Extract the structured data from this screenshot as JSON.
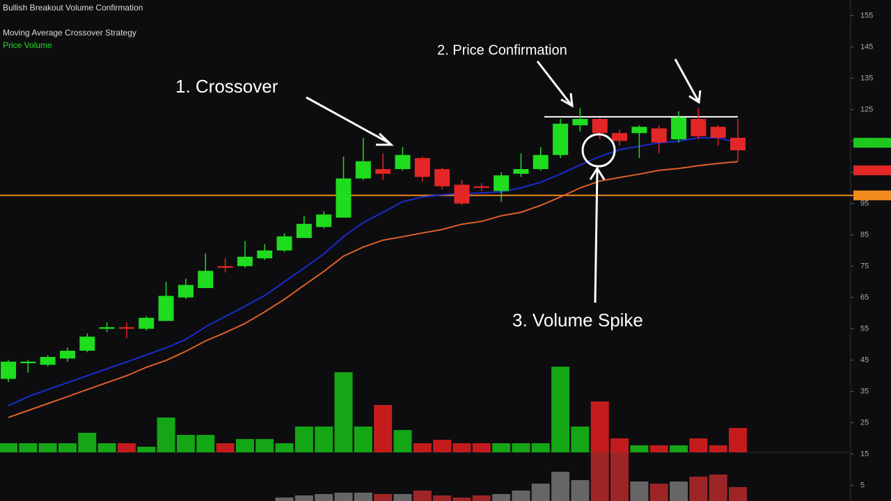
{
  "chart_data": {
    "type": "candlestick",
    "header": [
      "Bullish Breakout Volume Confirmation",
      "Moving Average Crossover Strategy",
      "Price Volume"
    ],
    "annotations": [
      "1. Crossover",
      "2. Price  Confirmation",
      "3. Volume Spike"
    ],
    "ylim": [
      0,
      160
    ],
    "yticks": [
      155,
      145,
      135,
      125,
      115,
      105,
      95,
      85,
      75,
      65,
      55,
      45,
      35,
      25,
      15,
      5
    ],
    "up_color": "#1fdc1f",
    "down_color": "#e32626",
    "open": [
      39,
      44,
      43.5,
      45.5,
      48,
      55,
      55.5,
      55,
      57.5,
      65,
      68,
      75,
      75,
      77.5,
      80,
      84,
      87.5,
      90.5,
      103,
      106,
      106,
      109.5,
      106,
      101,
      100.5,
      99,
      104.5,
      106,
      110.5,
      120,
      122,
      117.5,
      117.5,
      119,
      115.5,
      122,
      119.5,
      116
    ],
    "close": [
      44.5,
      44.5,
      46,
      48,
      52.5,
      55.5,
      55,
      58.5,
      65.5,
      69,
      73.5,
      74.5,
      78,
      80,
      84.5,
      88.5,
      91.5,
      103,
      108.5,
      104.5,
      110.5,
      103.5,
      100.5,
      95,
      100,
      104,
      106,
      110.5,
      120.5,
      122,
      117.5,
      115,
      119.5,
      114.5,
      122.5,
      116.5,
      116,
      112
    ],
    "high": [
      45,
      45,
      46.5,
      49,
      53.5,
      57,
      57,
      59,
      70,
      71,
      79,
      77.5,
      83,
      82,
      85.5,
      91,
      92.5,
      110,
      116,
      111,
      113,
      110,
      106.5,
      102.5,
      101.5,
      105,
      111,
      113,
      122,
      125.5,
      122.5,
      118.5,
      120,
      120,
      124.5,
      125.5,
      120,
      122
    ],
    "low": [
      38,
      41,
      43,
      44.5,
      47.5,
      54,
      52,
      54.5,
      57.5,
      64.5,
      68,
      73,
      74.5,
      77,
      79.5,
      84,
      87,
      90.5,
      102.5,
      102.5,
      105.5,
      102,
      99.5,
      94.5,
      99,
      95.5,
      103.5,
      105.5,
      109.5,
      118,
      115.5,
      113.5,
      109.5,
      111,
      114.5,
      115.5,
      113.5,
      108.5
    ],
    "series": [
      {
        "color": "#1b2bd0",
        "values": [
          30.4,
          33.3,
          35.6,
          37.8,
          40,
          42.2,
          44.4,
          46.7,
          48.9,
          51.6,
          55.6,
          58.9,
          62.2,
          65.6,
          70,
          74.4,
          78.9,
          84.4,
          88.9,
          92.2,
          95.6,
          97.1,
          97.8,
          98.2,
          98.4,
          98.7,
          100,
          101.8,
          104.4,
          107.3,
          110,
          112.2,
          113.3,
          114.4,
          114.9,
          116,
          116,
          114.4
        ]
      },
      {
        "color": "#e0602a",
        "values": [
          26.7,
          28.9,
          31.1,
          33.3,
          35.6,
          37.8,
          40,
          42.7,
          44.9,
          47.8,
          51.1,
          53.8,
          56.7,
          60.4,
          64.4,
          68.9,
          73.3,
          78.2,
          81.1,
          83.3,
          84.4,
          85.6,
          86.7,
          88.4,
          89.3,
          91.1,
          92.2,
          94.4,
          97.1,
          100,
          102.2,
          103.3,
          104.4,
          105.6,
          106.2,
          107.1,
          107.8,
          108.4
        ]
      }
    ],
    "support": 97.6,
    "support_color": "#f08a1c",
    "resistance": 122.7,
    "price_tags": [
      {
        "value": 114.4,
        "color": "#1fc81f"
      },
      {
        "value": 105.6,
        "color": "#e32626"
      },
      {
        "value": 97.6,
        "color": "#f08a1c"
      }
    ],
    "volume": {
      "ylim": [
        0,
        130
      ],
      "values": [
        13,
        13,
        13,
        13,
        28,
        13,
        13,
        8,
        50,
        25,
        25,
        13,
        19,
        19,
        13,
        37,
        37,
        115,
        37,
        68,
        32,
        13,
        18,
        13,
        13,
        13,
        13,
        13,
        123,
        37,
        73,
        20,
        10,
        10,
        10,
        20,
        10,
        35
      ]
    },
    "indicator": {
      "ylim": [
        0,
        70
      ],
      "values": [
        null,
        null,
        null,
        null,
        null,
        null,
        null,
        null,
        null,
        null,
        null,
        null,
        null,
        null,
        5,
        8,
        10,
        12,
        12,
        10,
        10,
        15,
        8,
        5,
        8,
        10,
        15,
        25,
        42,
        30,
        70,
        70,
        28,
        25,
        28,
        35,
        38,
        20
      ]
    }
  }
}
